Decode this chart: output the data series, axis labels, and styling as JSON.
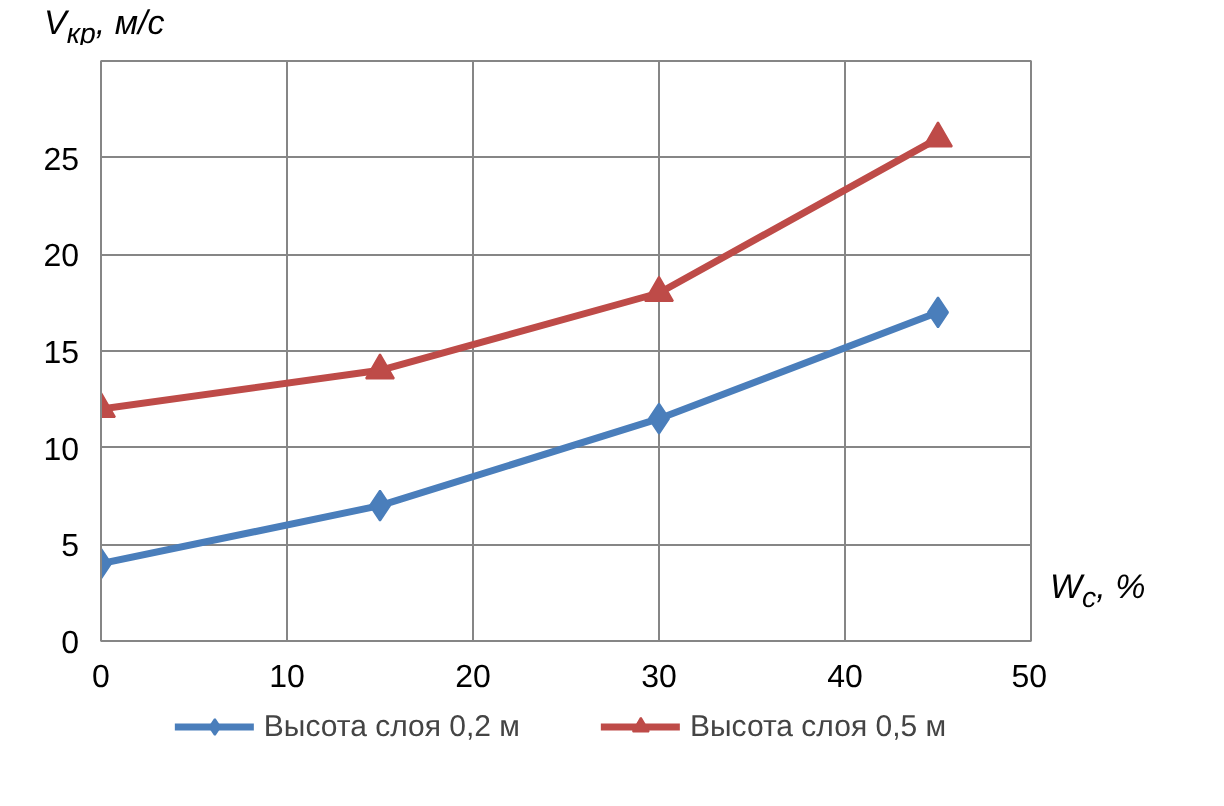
{
  "chart_data": {
    "type": "line",
    "xlabel": "W$_{с}$, %",
    "ylabel": "V$_{кр}$, м/с",
    "xlim": [
      0,
      50
    ],
    "xticks": [
      0,
      10,
      20,
      30,
      40,
      50
    ],
    "ylim": [
      0,
      30
    ],
    "yticks": [
      0,
      5,
      10,
      15,
      20,
      25,
      {
        "value": 30,
        "label": null
      }
    ],
    "grid": true,
    "legend": "bottom",
    "series": [
      {
        "name": "Высота слоя 0,2 м",
        "color": "#4a7ebb",
        "marker": "diamond",
        "x": [
          0,
          15,
          30,
          45
        ],
        "values": [
          4,
          7,
          11.5,
          17
        ]
      },
      {
        "name": "Высота слоя 0,5 м",
        "color": "#be4b48",
        "marker": "triangle",
        "x": [
          0,
          15,
          30,
          45
        ],
        "values": [
          12,
          14,
          18,
          26
        ]
      }
    ]
  }
}
